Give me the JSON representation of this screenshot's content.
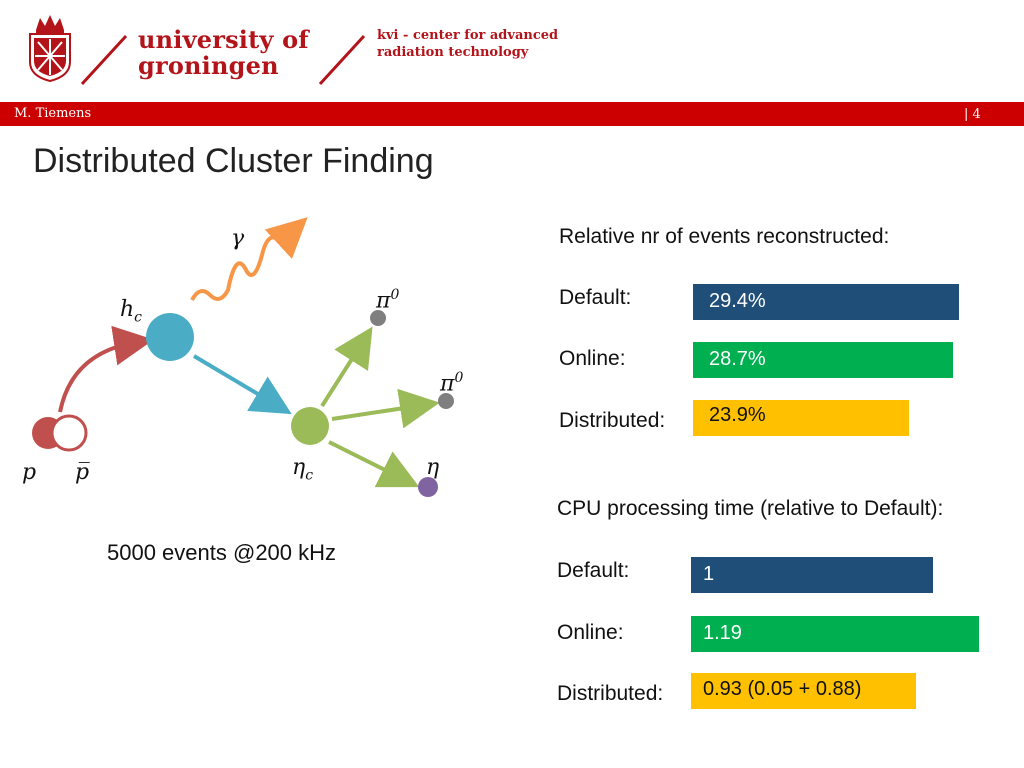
{
  "header": {
    "university_line1": "university of",
    "university_line2": "groningen",
    "institute_line1": "kvi - center for advanced",
    "institute_line2": "radiation technology",
    "author": "M. Tiemens",
    "page_number": "| 4"
  },
  "slide": {
    "title": "Distributed Cluster Finding"
  },
  "diagram": {
    "labels": {
      "gamma": "γ",
      "hc": "h",
      "hc_sub": "c",
      "pi0_a": "π",
      "pi0_a_sup": "0",
      "pi0_b": "π",
      "pi0_b_sup": "0",
      "etac": "η",
      "etac_sub": "c",
      "eta": "η",
      "p": "p",
      "pbar": "p̅"
    },
    "caption": "5000 events @200 kHz"
  },
  "events_reconstructed": {
    "heading": "Relative nr of events reconstructed:",
    "rows": [
      {
        "label": "Default:",
        "value_text": "29.4%",
        "value": 29.4,
        "color": "#1f4e79"
      },
      {
        "label": "Online:",
        "value_text": "28.7%",
        "value": 28.7,
        "color": "#00b050"
      },
      {
        "label": "Distributed:",
        "value_text": "23.9%",
        "value": 23.9,
        "color": "#ffc000"
      }
    ]
  },
  "cpu_time": {
    "heading": "CPU processing time (relative to Default):",
    "rows": [
      {
        "label": "Default:",
        "value_text": "1",
        "value": 1,
        "color": "#1f4e79"
      },
      {
        "label": "Online:",
        "value_text": "1.19",
        "value": 1.19,
        "color": "#00b050"
      },
      {
        "label": "Distributed:",
        "value_text": "0.93 (0.05 + 0.88)",
        "value": 0.93,
        "color": "#ffc000"
      }
    ]
  }
}
